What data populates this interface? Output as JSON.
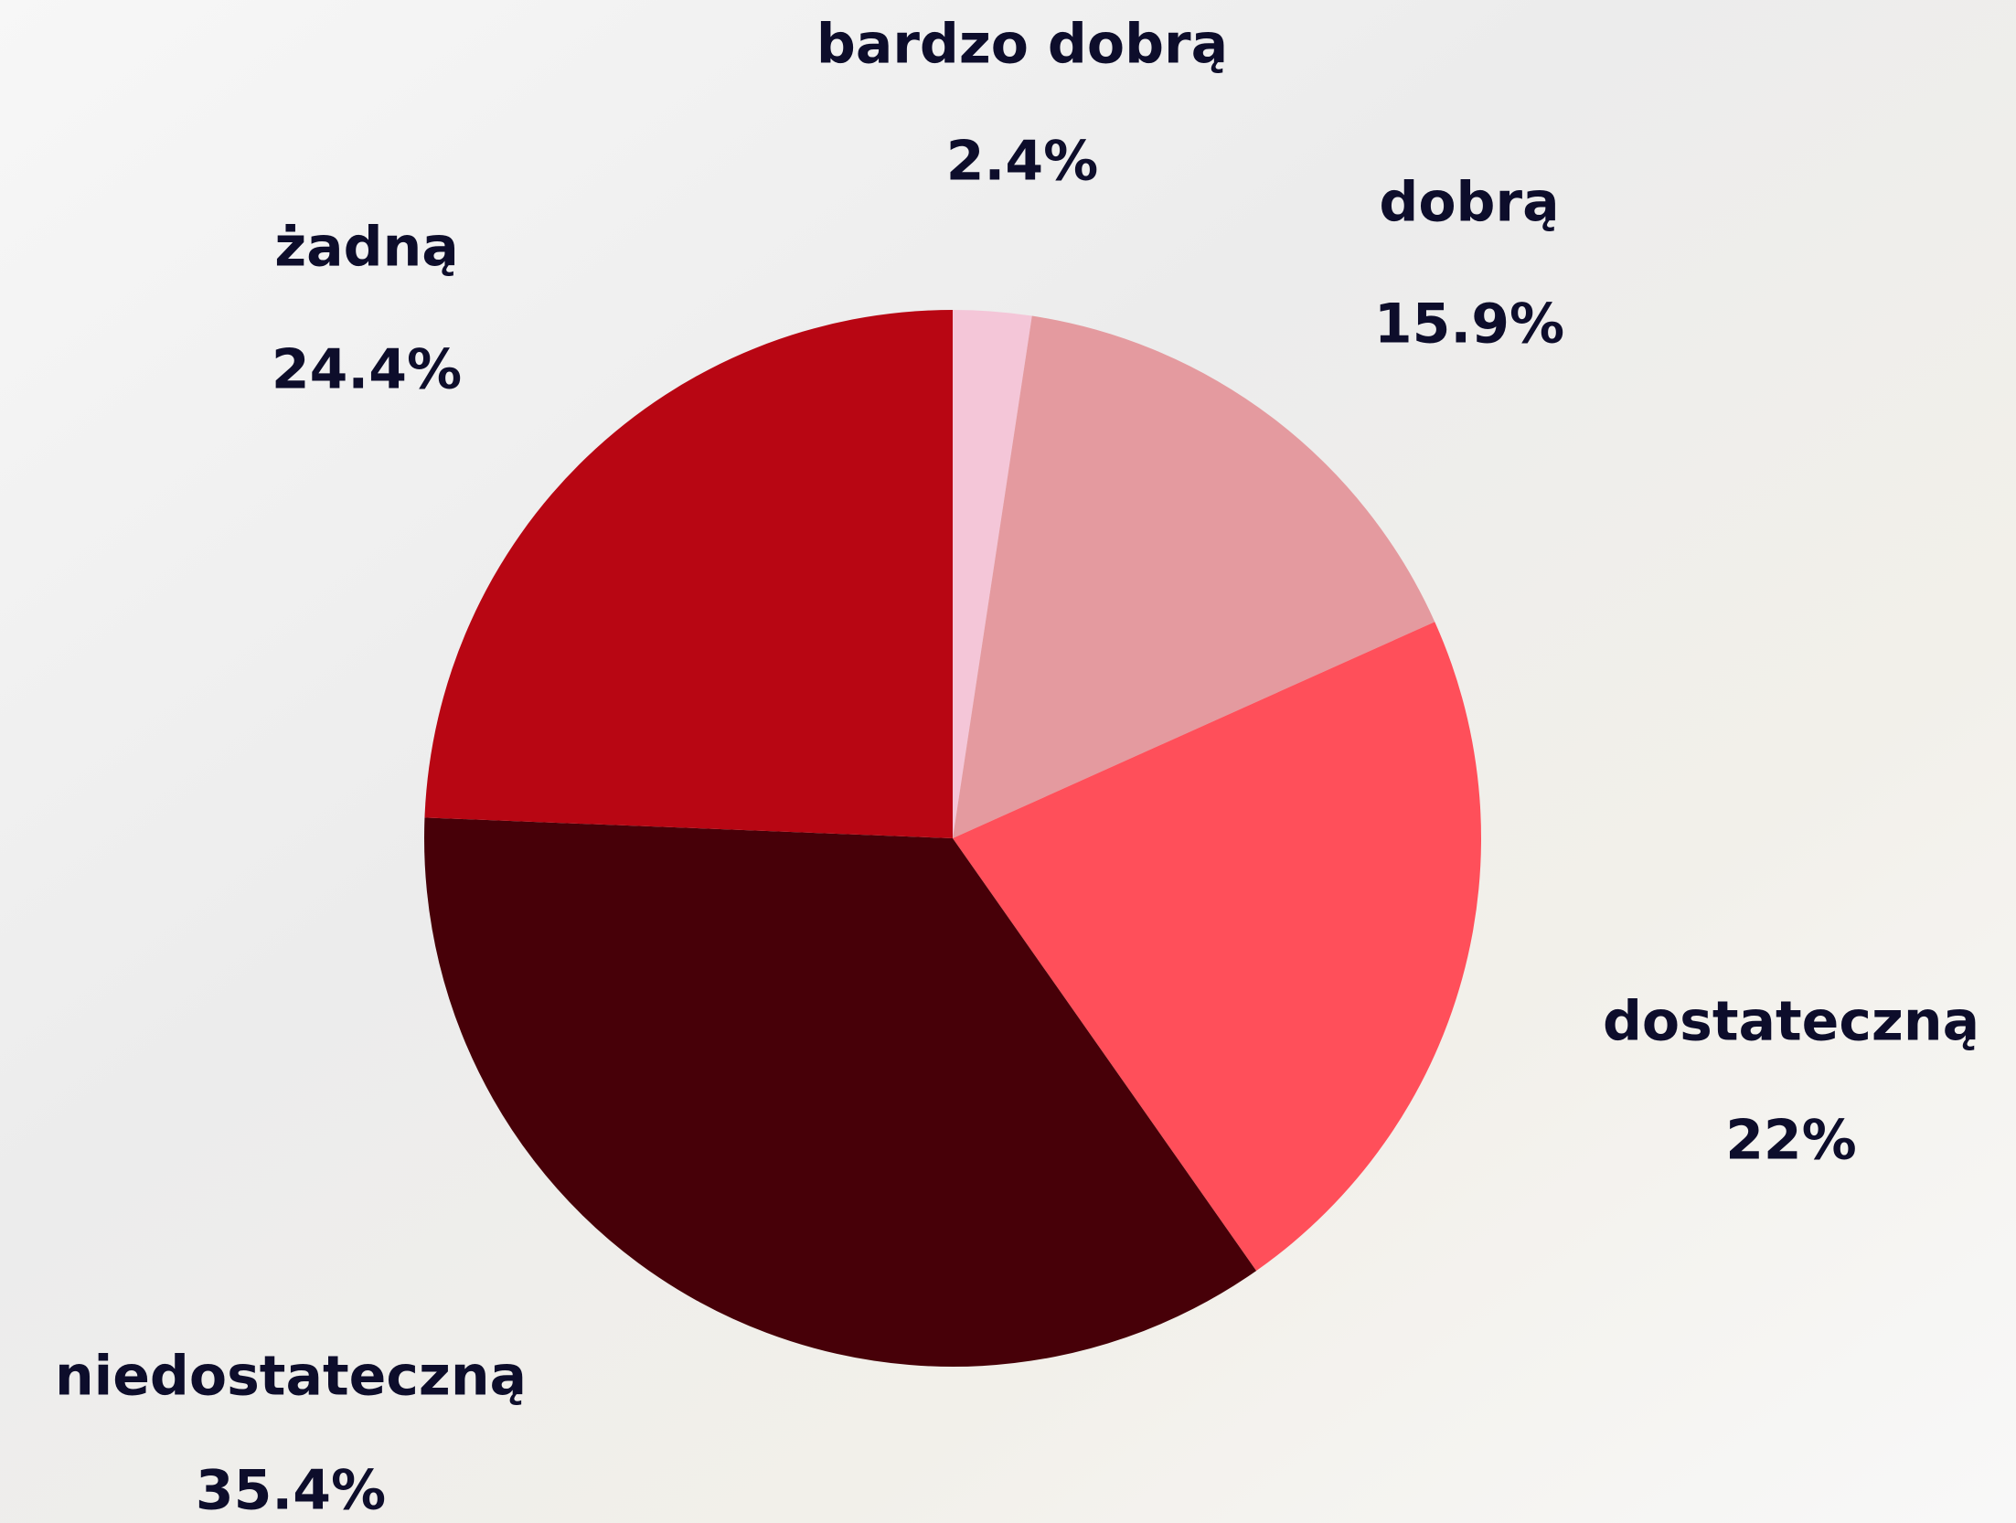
{
  "chart_data": {
    "type": "pie",
    "categories": [
      "bardzo dobrą",
      "dobrą",
      "dostateczną",
      "niedostateczną",
      "żadną"
    ],
    "values": [
      2.4,
      15.9,
      22,
      35.4,
      24.4
    ],
    "value_labels": [
      "2.4%",
      "15.9%",
      "22%",
      "35.4%",
      "24.4%"
    ],
    "colors": [
      "#f4c6d8",
      "#e49a9f",
      "#ff4f5a",
      "#470008",
      "#b80613"
    ]
  }
}
